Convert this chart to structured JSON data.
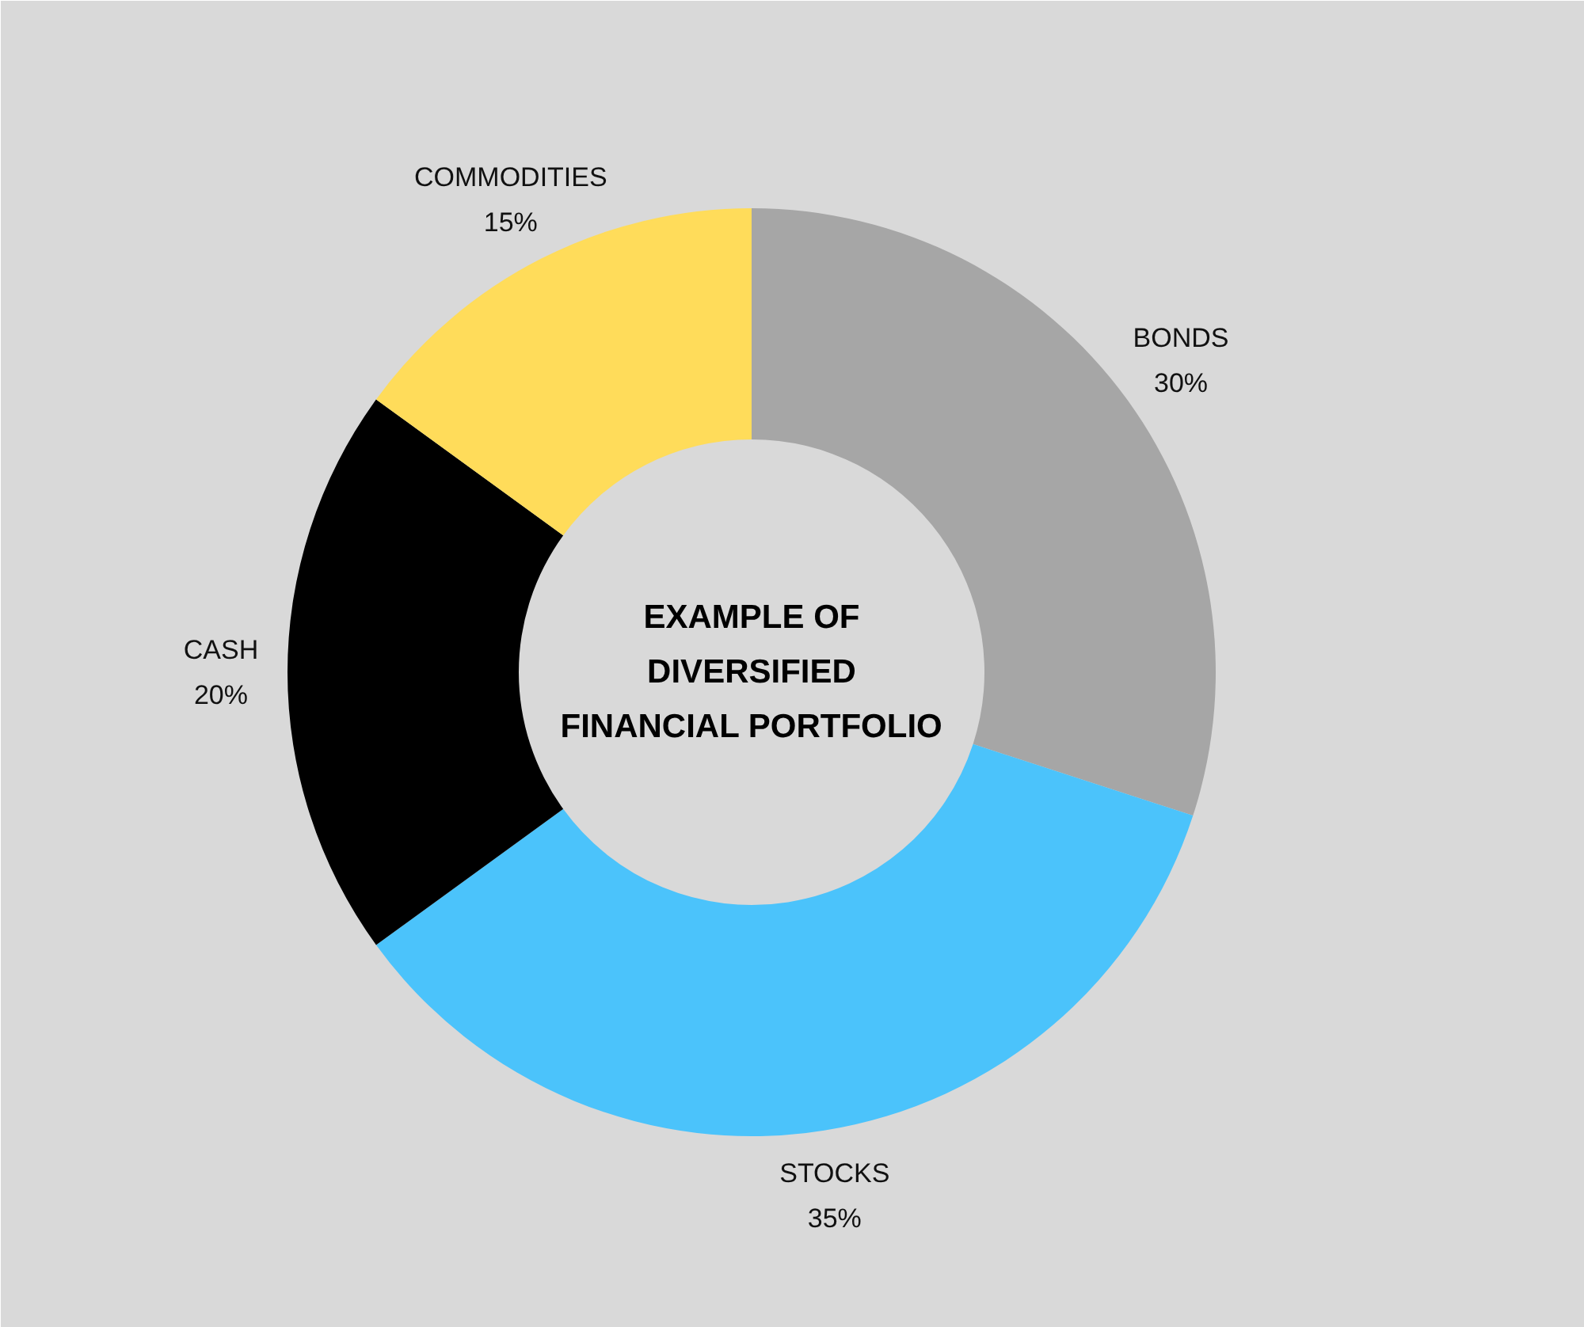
{
  "chart_data": {
    "type": "donut",
    "title": "EXAMPLE OF\nDIVERSIFIED\nFINANCIAL PORTFOLIO",
    "categories": [
      "BONDS",
      "STOCKS",
      "CASH",
      "COMMODITIES"
    ],
    "values": [
      30,
      35,
      20,
      15
    ],
    "colors": [
      "#a6a6a6",
      "#4bc3fb",
      "#000000",
      "#ffdc5a"
    ],
    "value_labels": [
      "30%",
      "35%",
      "20%",
      "15%"
    ]
  }
}
